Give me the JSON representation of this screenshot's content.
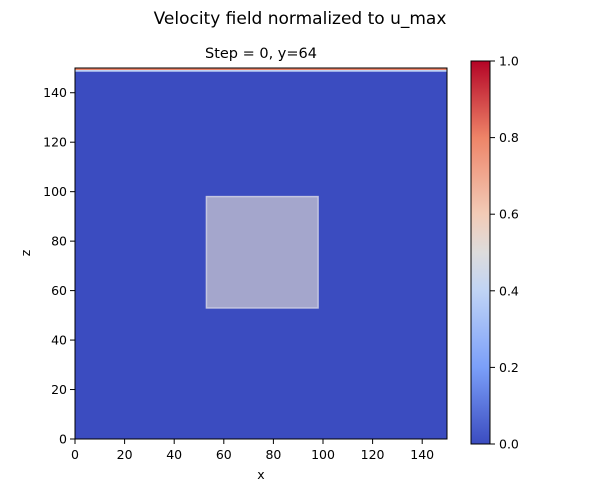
{
  "chart_data": {
    "type": "heatmap",
    "suptitle": "Velocity field normalized to u_max",
    "title": "Step = 0, y=64",
    "xlabel": "x",
    "ylabel": "z",
    "xlim": [
      0,
      150
    ],
    "ylim": [
      0,
      150
    ],
    "xticks": [
      0,
      20,
      40,
      60,
      80,
      100,
      120,
      140
    ],
    "yticks": [
      0,
      20,
      40,
      60,
      80,
      100,
      120,
      140
    ],
    "field": {
      "background_value": 0.0,
      "top_boundary": {
        "z_range": [
          148.5,
          150
        ],
        "value": 0.85
      },
      "obstacle": {
        "x_range": [
          53,
          98
        ],
        "z_range": [
          53,
          98
        ],
        "value": 0.4
      }
    },
    "colorbar": {
      "colormap": "coolwarm",
      "range": [
        0.0,
        1.0
      ],
      "ticks": [
        0.0,
        0.2,
        0.4,
        0.6,
        0.8,
        1.0
      ],
      "tick_labels": [
        "0.0",
        "0.2",
        "0.4",
        "0.6",
        "0.8",
        "1.0"
      ],
      "colors": [
        "#3b4cc0",
        "#7b9ff9",
        "#c0d4f5",
        "#f2cbb7",
        "#ee8468",
        "#b40426"
      ]
    },
    "grid": false
  }
}
